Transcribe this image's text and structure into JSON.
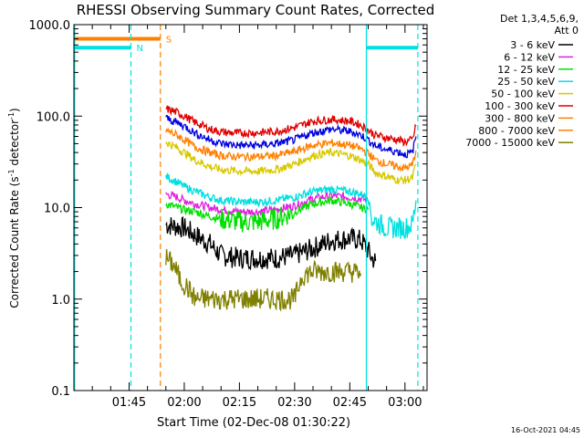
{
  "chart_data": {
    "type": "line",
    "title": "RHESSI Observing Summary Count Rates, Corrected",
    "xlabel": "Start Time (02-Dec-08 01:30:22)",
    "ylabel": "Corrected Count Rate (s",
    "ylabel_sup1": "-1",
    "ylabel_mid": " detector",
    "ylabel_sup2": "-1",
    "ylabel_end": ")",
    "xlim": [
      0,
      96
    ],
    "ylim": [
      0.1,
      1000
    ],
    "y_scale": "log",
    "x_ticks": [
      {
        "t": 15,
        "label": "01:45"
      },
      {
        "t": 30,
        "label": "02:00"
      },
      {
        "t": 45,
        "label": "02:15"
      },
      {
        "t": 60,
        "label": "02:30"
      },
      {
        "t": 75,
        "label": "02:45"
      },
      {
        "t": 90,
        "label": "03:00"
      }
    ],
    "y_ticks": [
      {
        "v": 1000,
        "label": "1000.0"
      },
      {
        "v": 100,
        "label": "100.0"
      },
      {
        "v": 10,
        "label": "10.0"
      },
      {
        "v": 1,
        "label": "1.0"
      },
      {
        "v": 0.1,
        "label": "0.1"
      }
    ],
    "legend_header": [
      "Det 1,3,4,5,6,9,",
      "Att 0"
    ],
    "series": [
      {
        "name": "3 - 6 keV",
        "color": "#000000",
        "x": [
          25,
          30,
          33,
          37,
          40,
          45,
          50,
          55,
          60,
          65,
          70,
          75,
          78,
          80,
          81,
          82
        ],
        "y": [
          6.5,
          6.0,
          5.0,
          4.0,
          3.0,
          2.8,
          2.8,
          2.8,
          3.0,
          3.6,
          4.4,
          4.6,
          4.4,
          3.4,
          2.8,
          2.6
        ]
      },
      {
        "name": "6 - 12 keV",
        "color": "#e020e0",
        "x": [
          25,
          28,
          30,
          33,
          37,
          40,
          45,
          50,
          55,
          60,
          65,
          70,
          75,
          78,
          80
        ],
        "y": [
          14,
          13,
          12,
          11,
          10,
          9.5,
          9.0,
          9.0,
          9.5,
          10.5,
          12.5,
          13.5,
          13.0,
          12.5,
          12
        ]
      },
      {
        "name": "12 - 25 keV",
        "color": "#00e000",
        "x": [
          25,
          28,
          30,
          33,
          37,
          40,
          45,
          50,
          55,
          60,
          65,
          70,
          75,
          78,
          80
        ],
        "y": [
          11,
          10,
          9.5,
          9.0,
          8.0,
          7.5,
          7.0,
          7.0,
          7.5,
          9.0,
          11,
          12,
          11,
          10,
          9.5
        ]
      },
      {
        "name": "25 - 50 keV",
        "color": "#00e0e0",
        "x": [
          25,
          28,
          30,
          33,
          37,
          40,
          45,
          50,
          55,
          60,
          65,
          70,
          75,
          78,
          80,
          81,
          85,
          90,
          92,
          93
        ],
        "y": [
          22,
          19,
          17,
          15,
          13,
          12,
          11.5,
          11.5,
          12,
          13,
          15,
          16,
          15,
          14,
          13,
          7.5,
          6.0,
          6.0,
          6.5,
          12
        ]
      },
      {
        "name": "50 - 100 keV",
        "color": "#d8c800",
        "x": [
          25,
          28,
          30,
          33,
          37,
          40,
          45,
          50,
          55,
          60,
          65,
          70,
          75,
          78,
          80,
          82,
          85,
          88,
          90,
          92,
          93
        ],
        "y": [
          52,
          45,
          40,
          33,
          28,
          26,
          25,
          25,
          26,
          30,
          37,
          40,
          37,
          33,
          30,
          24,
          22,
          20,
          20,
          21,
          30
        ]
      },
      {
        "name": "100 - 300 keV",
        "color": "#e00000",
        "x": [
          25,
          28,
          30,
          33,
          37,
          40,
          45,
          50,
          55,
          60,
          65,
          70,
          75,
          78,
          80,
          82,
          85,
          88,
          90,
          92,
          93
        ],
        "y": [
          120,
          110,
          100,
          85,
          72,
          67,
          65,
          66,
          68,
          75,
          88,
          92,
          88,
          80,
          70,
          62,
          58,
          55,
          52,
          55,
          78
        ]
      },
      {
        "name": "300 - 800 keV",
        "color": "#ff8000",
        "x": [
          25,
          28,
          30,
          33,
          37,
          40,
          45,
          50,
          55,
          60,
          65,
          70,
          75,
          78,
          80,
          82,
          85,
          88,
          90,
          92,
          93
        ],
        "y": [
          70,
          62,
          55,
          46,
          40,
          37,
          36,
          36,
          37,
          41,
          48,
          51,
          48,
          44,
          39,
          33,
          30,
          28,
          27,
          29,
          42
        ]
      },
      {
        "name": "800 - 7000 keV",
        "color": "#ff8000",
        "x": [],
        "y": []
      },
      {
        "name": "7000 - 15000 keV",
        "color": "#808000",
        "x": [
          25,
          27,
          29,
          31,
          33,
          35,
          37,
          40,
          45,
          50,
          55,
          60,
          62,
          65,
          70,
          75,
          78
        ],
        "y": [
          2.8,
          2.4,
          1.6,
          1.3,
          1.0,
          1.0,
          1.0,
          1.0,
          1.0,
          1.0,
          1.0,
          1.0,
          1.8,
          2.0,
          2.0,
          2.0,
          1.9
        ]
      },
      {
        "name": "",
        "color": "#0000e0",
        "x": [
          25,
          28,
          30,
          33,
          37,
          40,
          45,
          50,
          55,
          60,
          65,
          70,
          75,
          78,
          80,
          82,
          85,
          88,
          90,
          92,
          93
        ],
        "y": [
          95,
          85,
          78,
          65,
          55,
          50,
          48,
          48,
          50,
          55,
          66,
          72,
          68,
          62,
          55,
          47,
          43,
          41,
          38,
          40,
          60
        ]
      }
    ],
    "flag_bars": [
      {
        "label": "S",
        "color": "#ff8000",
        "t_start": 0,
        "t_end": 23.5,
        "v": 700
      },
      {
        "label": "N",
        "color": "#00e0e0",
        "t_start": 0,
        "t_end": 15.5,
        "v": 560
      },
      {
        "label": "",
        "color": "#00e0e0",
        "t_start": 79.5,
        "t_end": 93.5,
        "v": 560
      }
    ],
    "vlines": [
      {
        "t": 0.2,
        "color": "#00e0e0",
        "style": "solid"
      },
      {
        "t": 15.5,
        "color": "#00e0e0",
        "style": "dashed"
      },
      {
        "t": 23.5,
        "color": "#ff8000",
        "style": "dashed"
      },
      {
        "t": 79.5,
        "color": "#00e0e0",
        "style": "solid"
      },
      {
        "t": 93.5,
        "color": "#00e0e0",
        "style": "dashed"
      }
    ],
    "grid": false,
    "legend_position": "right"
  },
  "footer": {
    "timestamp": "16-Oct-2021 04:45"
  }
}
